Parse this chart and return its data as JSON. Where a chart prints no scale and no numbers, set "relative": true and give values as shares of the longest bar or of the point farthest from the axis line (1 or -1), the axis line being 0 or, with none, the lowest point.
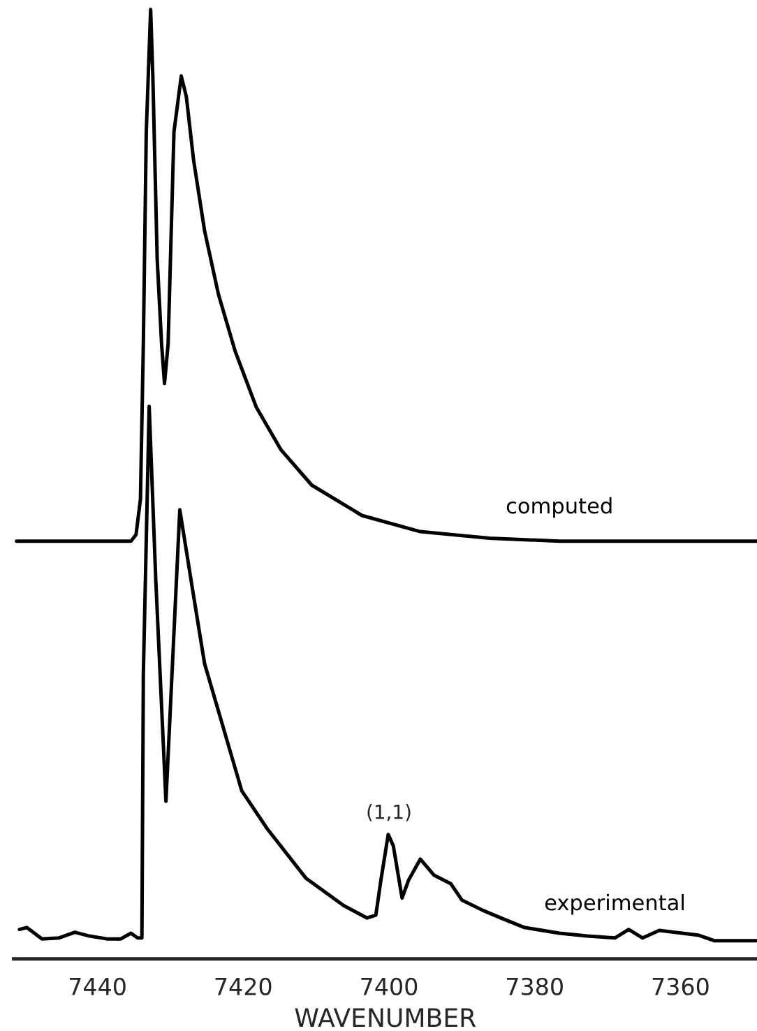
{
  "chart_data": {
    "type": "line",
    "relative": true,
    "xlabel": "WAVENUMBER",
    "xlim": [
      7451.5,
      7349.5
    ],
    "xticks": [
      7440,
      7420,
      7400,
      7380,
      7360
    ],
    "grid": false,
    "legend": false,
    "marker": "none",
    "line_style": "solid",
    "tick_labels": "x",
    "annotations": [
      {
        "text": "(1,1)",
        "x": 7400,
        "y": 0.131
      }
    ],
    "series": [
      {
        "name": "computed",
        "color": "#000000",
        "x": [
          7451.1,
          7435.4,
          7434.7,
          7434.1,
          7433.7,
          7433.3,
          7432.7,
          7432.4,
          7431.8,
          7431.2,
          7430.8,
          7430.3,
          7429.5,
          7428.5,
          7427.8,
          7426.8,
          7425.3,
          7423.4,
          7421.1,
          7418.2,
          7414.8,
          7410.6,
          7403.7,
          7395.7,
          7386.2,
          7376.6,
          7349.5
        ],
        "values": [
          0.44,
          0.44,
          0.447,
          0.484,
          0.648,
          0.871,
          1.0,
          0.93,
          0.737,
          0.648,
          0.606,
          0.648,
          0.871,
          0.93,
          0.908,
          0.841,
          0.767,
          0.7,
          0.64,
          0.581,
          0.536,
          0.499,
          0.467,
          0.45,
          0.443,
          0.44,
          0.44
        ]
      },
      {
        "name": "experimental",
        "color": "#000000",
        "x": [
          7450.7,
          7449.7,
          7447.6,
          7445.3,
          7443.1,
          7441.1,
          7438.7,
          7436.8,
          7435.4,
          7434.5,
          7433.9,
          7433.7,
          7432.9,
          7432.0,
          7430.6,
          7428.7,
          7426.8,
          7425.3,
          7420.2,
          7416.7,
          7411.4,
          7406.2,
          7403.0,
          7401.8,
          7401.1,
          7400.1,
          7399.4,
          7398.2,
          7397.3,
          7395.7,
          7393.8,
          7391.5,
          7390.0,
          7387.1,
          7384.3,
          7381.4,
          7376.6,
          7372.8,
          7369.0,
          7367.1,
          7365.2,
          7362.9,
          7357.6,
          7355.3,
          7349.5
        ],
        "values": [
          0.031,
          0.033,
          0.021,
          0.022,
          0.028,
          0.024,
          0.021,
          0.021,
          0.027,
          0.022,
          0.022,
          0.3,
          0.582,
          0.4,
          0.166,
          0.473,
          0.382,
          0.311,
          0.177,
          0.137,
          0.085,
          0.056,
          0.043,
          0.046,
          0.083,
          0.131,
          0.119,
          0.064,
          0.083,
          0.105,
          0.088,
          0.079,
          0.062,
          0.051,
          0.042,
          0.033,
          0.027,
          0.024,
          0.022,
          0.031,
          0.022,
          0.03,
          0.025,
          0.019,
          0.019
        ]
      }
    ]
  }
}
